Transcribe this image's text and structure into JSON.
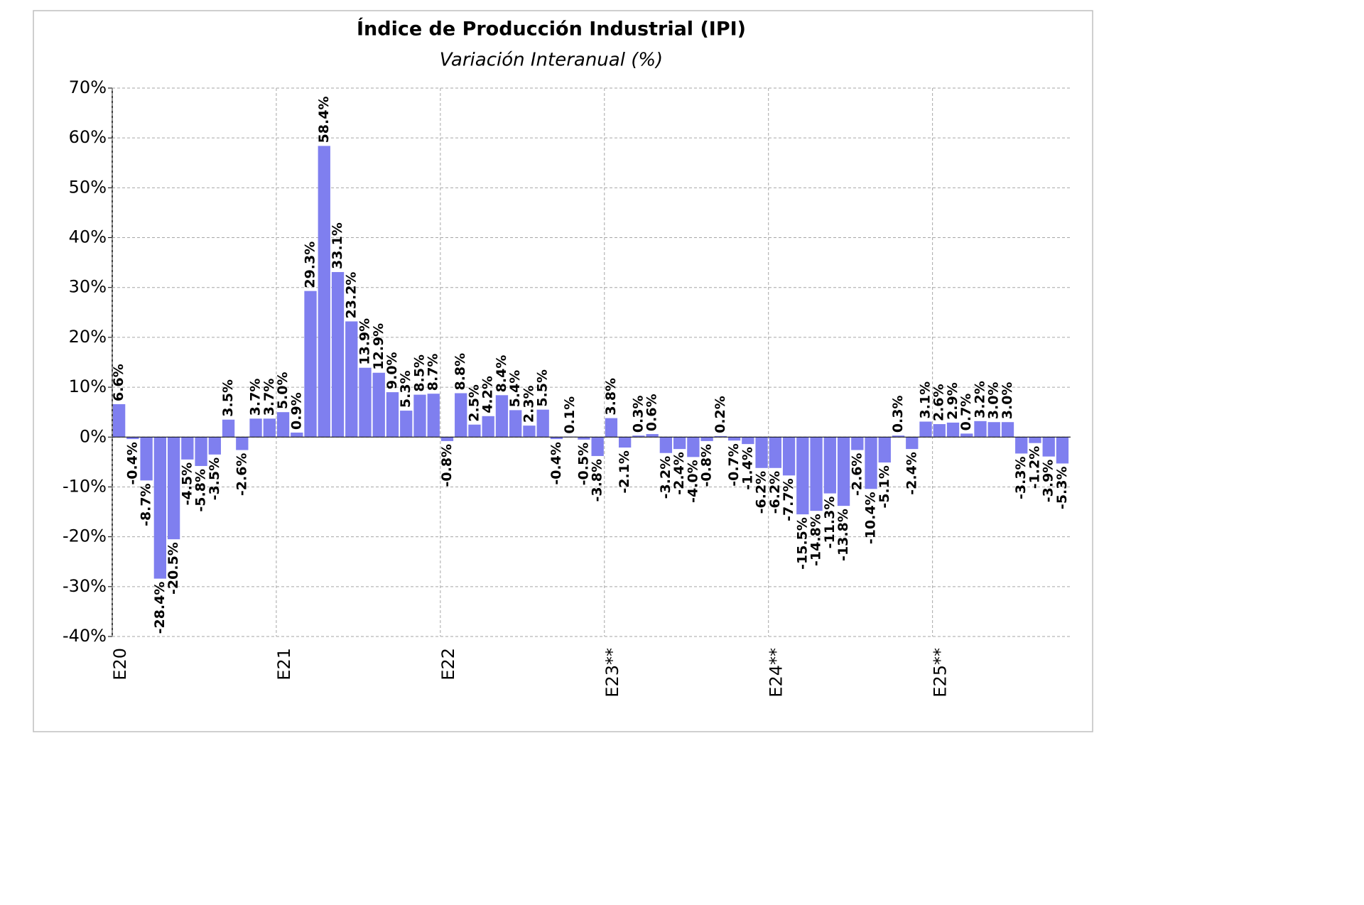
{
  "chart_data": {
    "type": "bar",
    "title": "Índice de Producción Industrial (IPI)",
    "subtitle": "Variación Interanual (%)",
    "color": "#7f7fef",
    "grid": true,
    "categories": [
      "E20",
      null,
      null,
      null,
      null,
      null,
      null,
      null,
      null,
      null,
      null,
      null,
      "E21",
      null,
      null,
      null,
      null,
      null,
      null,
      null,
      null,
      null,
      null,
      null,
      "E22",
      null,
      null,
      null,
      null,
      null,
      null,
      null,
      null,
      null,
      null,
      null,
      "E23**",
      null,
      null,
      null,
      null,
      null,
      null,
      null,
      null,
      null,
      null,
      null,
      "E24**",
      null,
      null,
      null,
      null,
      null,
      null,
      null,
      null,
      null,
      null,
      null,
      "E25**",
      null,
      null,
      null,
      null,
      null,
      null,
      null,
      null,
      null
    ],
    "values": [
      6.6,
      -0.4,
      -8.7,
      -28.4,
      -20.5,
      -4.5,
      -5.8,
      -3.5,
      3.5,
      -2.6,
      3.7,
      3.7,
      5.0,
      0.9,
      29.3,
      58.4,
      33.1,
      23.2,
      13.9,
      12.9,
      9.0,
      5.3,
      8.5,
      8.7,
      -0.8,
      8.8,
      2.5,
      4.2,
      8.4,
      5.4,
      2.3,
      5.5,
      -0.4,
      0.1,
      -0.5,
      -3.8,
      3.8,
      -2.1,
      0.3,
      0.6,
      -3.2,
      -2.4,
      -4.0,
      -0.8,
      0.2,
      -0.7,
      -1.4,
      -6.2,
      -6.2,
      -7.7,
      -15.5,
      -14.8,
      -11.3,
      -13.8,
      -2.6,
      -10.4,
      -5.1,
      0.3,
      -2.4,
      3.1,
      2.6,
      2.9,
      0.7,
      3.2,
      3.0,
      3.0,
      -3.3,
      -1.2,
      -3.9,
      -5.3
    ],
    "value_labels": [
      "6.6%",
      "-0.4%",
      "-8.7%",
      "-28.4%",
      "-20.5%",
      "-4.5%",
      "-5.8%",
      "-3.5%",
      "3.5%",
      "-2.6%",
      "3.7%",
      "3.7%",
      "5.0%",
      "0.9%",
      "29.3%",
      "58.4%",
      "33.1%",
      "23.2%",
      "13.9%",
      "12.9%",
      "9.0%",
      "5.3%",
      "8.5%",
      "8.7%",
      "-0.8%",
      "8.8%",
      "2.5%",
      "4.2%",
      "8.4%",
      "5.4%",
      "2.3%",
      "5.5%",
      "-0.4%",
      "0.1%",
      "-0.5%",
      "-3.8%",
      "3.8%",
      "-2.1%",
      "0.3%",
      "0.6%",
      "-3.2%",
      "-2.4%",
      "-4.0%",
      "-0.8%",
      "0.2%",
      "-0.7%",
      "-1.4%",
      "-6.2%",
      "-6.2%",
      "-7.7%",
      "-15.5%",
      "-14.8%",
      "-11.3%",
      "-13.8%",
      "-2.6%",
      "-10.4%",
      "-5.1%",
      "0.3%",
      "-2.4%",
      "3.1%",
      "2.6%",
      "2.9%",
      "0.7%",
      "3.2%",
      "3.0%",
      "3.0%",
      "-3.3%",
      "-1.2%",
      "-3.9%",
      "-5.3%"
    ],
    "ylim": [
      -40,
      70
    ],
    "yticks": [
      {
        "value": -40,
        "label": "-40%"
      },
      {
        "value": -30,
        "label": "-30%"
      },
      {
        "value": -20,
        "label": "-20%"
      },
      {
        "value": -10,
        "label": "-10%"
      },
      {
        "value": 0,
        "label": "0%"
      },
      {
        "value": 10,
        "label": "10%"
      },
      {
        "value": 20,
        "label": "20%"
      },
      {
        "value": 30,
        "label": "30%"
      },
      {
        "value": 40,
        "label": "40%"
      },
      {
        "value": 50,
        "label": "50%"
      },
      {
        "value": 60,
        "label": "60%"
      },
      {
        "value": 70,
        "label": "70%"
      }
    ]
  }
}
